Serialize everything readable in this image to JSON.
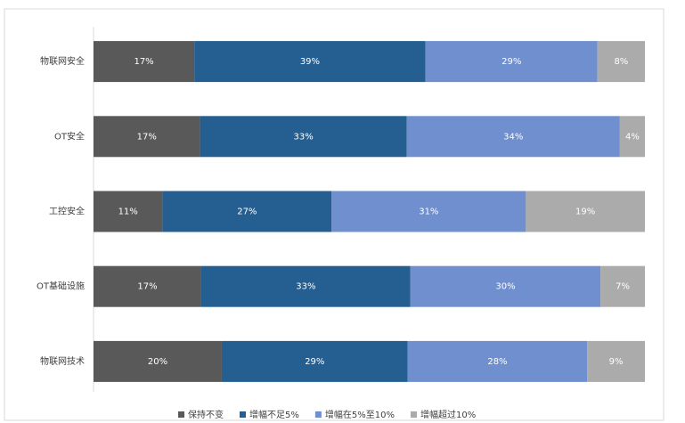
{
  "chart_data": {
    "type": "bar",
    "orientation": "horizontal",
    "stacked": "percent",
    "categories": [
      "物联网安全",
      "OT安全",
      "工控安全",
      "OT基础设施",
      "物联网技术"
    ],
    "series": [
      {
        "name": "保持不变",
        "color": "#595959",
        "values": [
          17,
          17,
          11,
          17,
          20
        ],
        "value_labels": [
          "17%",
          "17%",
          "11%",
          "17%",
          "20%"
        ]
      },
      {
        "name": "增幅不足5%",
        "color": "#255e91",
        "values": [
          39,
          33,
          27,
          33,
          29
        ],
        "value_labels": [
          "39%",
          "33%",
          "27%",
          "33%",
          "29%"
        ]
      },
      {
        "name": "增幅在5%至10%",
        "color": "#6f8fcf",
        "values": [
          29,
          34,
          31,
          30,
          28
        ],
        "value_labels": [
          "29%",
          "34%",
          "31%",
          "30%",
          "28%"
        ]
      },
      {
        "name": "增幅超过10%",
        "color": "#ababab",
        "values": [
          8,
          4,
          19,
          7,
          9
        ],
        "value_labels": [
          "8%",
          "4%",
          "19%",
          "7%",
          "9%"
        ]
      }
    ]
  }
}
